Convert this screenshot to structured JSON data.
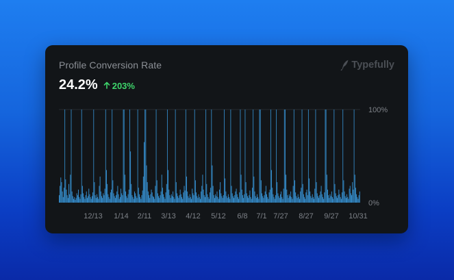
{
  "card": {
    "title": "Profile Conversion Rate",
    "brand_name": "Typefully",
    "brand_icon": "quill-icon",
    "metric_value": "24.2%",
    "delta_icon": "arrow-up-icon",
    "delta_value": "203%"
  },
  "colors": {
    "background_top": "#1e7ef0",
    "background_bottom": "#0a2aa8",
    "card": "#121518",
    "bar": "#3a9be0",
    "delta": "#3ed56b",
    "muted_text": "#8c9096"
  },
  "chart_data": {
    "type": "bar",
    "title": "Profile Conversion Rate",
    "xlabel": "",
    "ylabel": "",
    "ylim": [
      0,
      100
    ],
    "y_tick_labels": [
      "100%",
      "0%"
    ],
    "x_tick_labels": [
      "12/13",
      "1/14",
      "2/11",
      "3/13",
      "4/12",
      "5/12",
      "6/8",
      "7/1",
      "7/27",
      "8/27",
      "9/27",
      "10/31"
    ],
    "grid": false,
    "legend": "none",
    "approx_bar_count": 330,
    "values": [
      8,
      18,
      27,
      22,
      12,
      6,
      16,
      100,
      25,
      14,
      8,
      5,
      20,
      9,
      30,
      100,
      12,
      7,
      4,
      6,
      3,
      5,
      10,
      8,
      14,
      6,
      4,
      9,
      100,
      18,
      10,
      6,
      4,
      8,
      12,
      5,
      7,
      15,
      9,
      6,
      4,
      7,
      11,
      100,
      22,
      8,
      5,
      9,
      6,
      4,
      18,
      28,
      12,
      7,
      5,
      10,
      8,
      15,
      100,
      35,
      20,
      9,
      6,
      4,
      11,
      14,
      100,
      24,
      10,
      7,
      5,
      8,
      12,
      18,
      9,
      4,
      6,
      15,
      10,
      8,
      100,
      100,
      30,
      12,
      7,
      5,
      9,
      14,
      100,
      55,
      20,
      8,
      6,
      4,
      12,
      10,
      7,
      5,
      100,
      16,
      9,
      6,
      4,
      8,
      13,
      28,
      65,
      100,
      100,
      40,
      22,
      12,
      8,
      5,
      9,
      14,
      11,
      7,
      6,
      4,
      18,
      100,
      24,
      10,
      7,
      5,
      8,
      12,
      30,
      16,
      9,
      6,
      4,
      11,
      20,
      100,
      35,
      14,
      8,
      5,
      9,
      7,
      12,
      6,
      4,
      100,
      22,
      10,
      7,
      5,
      8,
      14,
      9,
      6,
      4,
      11,
      18,
      13,
      100,
      28,
      12,
      7,
      5,
      9,
      6,
      4,
      15,
      10,
      8,
      100,
      24,
      11,
      7,
      5,
      9,
      6,
      4,
      12,
      18,
      30,
      14,
      8,
      6,
      100,
      20,
      9,
      6,
      4,
      11,
      16,
      100,
      40,
      18,
      8,
      5,
      9,
      7,
      12,
      6,
      4,
      14,
      22,
      10,
      7,
      5,
      8,
      100,
      26,
      12,
      7,
      5,
      9,
      6,
      4,
      100,
      18,
      10,
      7,
      5,
      8,
      12,
      15,
      9,
      6,
      4,
      11,
      100,
      30,
      14,
      8,
      5,
      9,
      100,
      22,
      10,
      7,
      5,
      8,
      13,
      6,
      4,
      16,
      100,
      28,
      12,
      7,
      5,
      9,
      6,
      4,
      100,
      100,
      24,
      10,
      7,
      5,
      8,
      12,
      18,
      9,
      6,
      4,
      11,
      14,
      100,
      35,
      16,
      9,
      6,
      4,
      8,
      100,
      22,
      10,
      7,
      5,
      9,
      12,
      6,
      4,
      15,
      100,
      100,
      30,
      14,
      8,
      5,
      9,
      7,
      12,
      6,
      4,
      18,
      100,
      24,
      11,
      7,
      5,
      9,
      6,
      4,
      12,
      16,
      100,
      20,
      9,
      6,
      4,
      11,
      14,
      8,
      100,
      26,
      12,
      7,
      5,
      9,
      6,
      4,
      15,
      100,
      22,
      10,
      7,
      5,
      8,
      12,
      18,
      9,
      6,
      4,
      11,
      100,
      100,
      30,
      14,
      8,
      5,
      9,
      7,
      12,
      6,
      4,
      100,
      20,
      10,
      7,
      5,
      8,
      14,
      9,
      6,
      4,
      11,
      100,
      24,
      12,
      7,
      5,
      9,
      6,
      4,
      15,
      18,
      10,
      8,
      22,
      14,
      100,
      30,
      16,
      9,
      6,
      4,
      8,
      12
    ]
  }
}
